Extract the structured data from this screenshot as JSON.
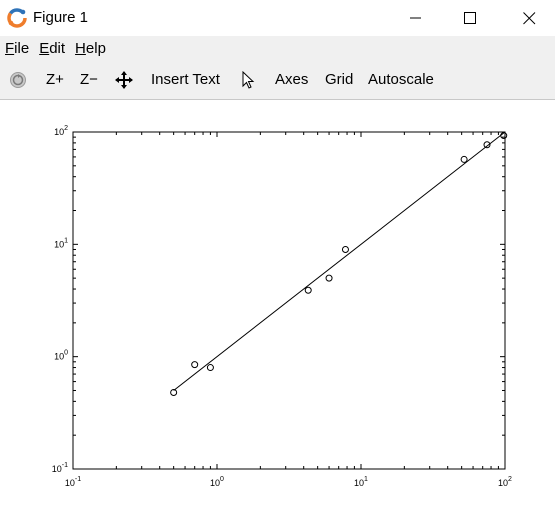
{
  "window": {
    "title": "Figure 1",
    "icon": "octave-logo-icon"
  },
  "menu": {
    "items": [
      {
        "label": "File",
        "accel": "F",
        "rest": "ile"
      },
      {
        "label": "Edit",
        "accel": "E",
        "rest": "dit"
      },
      {
        "label": "Help",
        "accel": "H",
        "rest": "elp"
      }
    ]
  },
  "toolbar": {
    "zoom_in": "Z+",
    "zoom_out": "Z−",
    "insert_text": "Insert Text",
    "axes": "Axes",
    "grid": "Grid",
    "autoscale": "Autoscale"
  },
  "chart_data": {
    "type": "scatter",
    "xscale": "log",
    "yscale": "log",
    "xlim": [
      0.1,
      100
    ],
    "ylim": [
      0.1,
      100
    ],
    "x_ticks": [
      {
        "base": "10",
        "exp": "-1",
        "value": 0.1
      },
      {
        "base": "10",
        "exp": "0",
        "value": 1
      },
      {
        "base": "10",
        "exp": "1",
        "value": 10
      },
      {
        "base": "10",
        "exp": "2",
        "value": 100
      }
    ],
    "y_ticks": [
      {
        "base": "10",
        "exp": "-1",
        "value": 0.1
      },
      {
        "base": "10",
        "exp": "0",
        "value": 1
      },
      {
        "base": "10",
        "exp": "1",
        "value": 10
      },
      {
        "base": "10",
        "exp": "2",
        "value": 100
      }
    ],
    "points": [
      {
        "x": 0.5,
        "y": 0.48
      },
      {
        "x": 0.7,
        "y": 0.85
      },
      {
        "x": 0.9,
        "y": 0.8
      },
      {
        "x": 4.3,
        "y": 3.9
      },
      {
        "x": 6.0,
        "y": 5.0
      },
      {
        "x": 7.8,
        "y": 9.0
      },
      {
        "x": 52,
        "y": 57
      },
      {
        "x": 75,
        "y": 77
      },
      {
        "x": 98,
        "y": 93
      }
    ],
    "fit_line": {
      "x": [
        0.5,
        100
      ],
      "y": [
        0.5,
        100
      ]
    },
    "grid": false,
    "legend": "none",
    "colors": {
      "marker": "#000000",
      "line": "#000000",
      "axes": "#000000"
    }
  }
}
